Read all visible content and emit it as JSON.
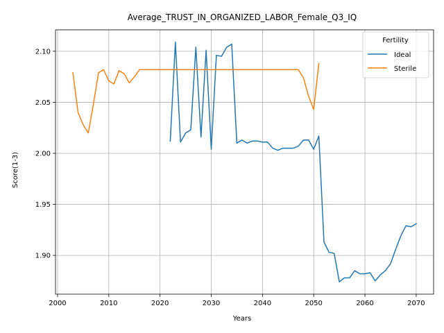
{
  "chart_data": {
    "type": "line",
    "title": "Average_TRUST_IN_ORGANIZED_LABOR_Female_Q3_IQ",
    "xlabel": "Years",
    "ylabel": "Score(1-3)",
    "xlim": [
      1999.6,
      2073.4
    ],
    "ylim": [
      1.862,
      2.121
    ],
    "xticks": [
      2000,
      2010,
      2020,
      2030,
      2040,
      2050,
      2060,
      2070
    ],
    "xtick_labels": [
      "2000",
      "2010",
      "2020",
      "2030",
      "2040",
      "2050",
      "2060",
      "2070"
    ],
    "yticks": [
      1.9,
      1.95,
      2.0,
      2.05,
      2.1
    ],
    "ytick_labels": [
      "1.90",
      "1.95",
      "2.00",
      "2.05",
      "2.10"
    ],
    "grid": true,
    "legend": {
      "title": "Fertility",
      "placement": "top-right"
    },
    "series": [
      {
        "name": "Ideal",
        "color": "#1f77b4",
        "x": [
          2022,
          2023,
          2024,
          2025,
          2026,
          2027,
          2028,
          2029,
          2030,
          2031,
          2032,
          2033,
          2034,
          2035,
          2036,
          2037,
          2038,
          2039,
          2040,
          2041,
          2042,
          2043,
          2044,
          2045,
          2046,
          2047,
          2048,
          2049,
          2050,
          2051,
          2052,
          2053,
          2054,
          2055,
          2056,
          2057,
          2058,
          2059,
          2060,
          2061,
          2062,
          2063,
          2064,
          2065,
          2066,
          2067,
          2068,
          2069,
          2070
        ],
        "y": [
          2.012,
          2.109,
          2.011,
          2.02,
          2.023,
          2.104,
          2.016,
          2.101,
          2.004,
          2.096,
          2.095,
          2.104,
          2.107,
          2.01,
          2.013,
          2.01,
          2.012,
          2.012,
          2.011,
          2.011,
          2.005,
          2.003,
          2.005,
          2.005,
          2.005,
          2.007,
          2.013,
          2.013,
          2.004,
          2.017,
          1.913,
          1.903,
          1.902,
          1.874,
          1.878,
          1.878,
          1.885,
          1.882,
          1.882,
          1.883,
          1.875,
          1.881,
          1.885,
          1.892,
          1.906,
          1.919,
          1.929,
          1.928,
          1.931
        ]
      },
      {
        "name": "Sterile",
        "color": "#ff7f0e",
        "x": [
          2003,
          2004,
          2005,
          2006,
          2007,
          2008,
          2009,
          2010,
          2011,
          2012,
          2013,
          2014,
          2015,
          2016,
          2017,
          2018,
          2019,
          2020,
          2021,
          2022,
          2023,
          2024,
          2025,
          2026,
          2027,
          2028,
          2029,
          2030,
          2031,
          2032,
          2033,
          2034,
          2035,
          2036,
          2037,
          2038,
          2039,
          2040,
          2041,
          2042,
          2043,
          2044,
          2045,
          2046,
          2047,
          2048,
          2049,
          2050,
          2051
        ],
        "y": [
          2.079,
          2.04,
          2.028,
          2.02,
          2.048,
          2.079,
          2.082,
          2.071,
          2.068,
          2.081,
          2.078,
          2.069,
          2.075,
          2.082,
          2.082,
          2.082,
          2.082,
          2.082,
          2.082,
          2.082,
          2.082,
          2.082,
          2.082,
          2.082,
          2.082,
          2.082,
          2.082,
          2.082,
          2.082,
          2.082,
          2.082,
          2.082,
          2.082,
          2.082,
          2.082,
          2.082,
          2.082,
          2.082,
          2.082,
          2.082,
          2.082,
          2.082,
          2.082,
          2.082,
          2.082,
          2.074,
          2.056,
          2.043,
          2.088
        ]
      }
    ]
  }
}
